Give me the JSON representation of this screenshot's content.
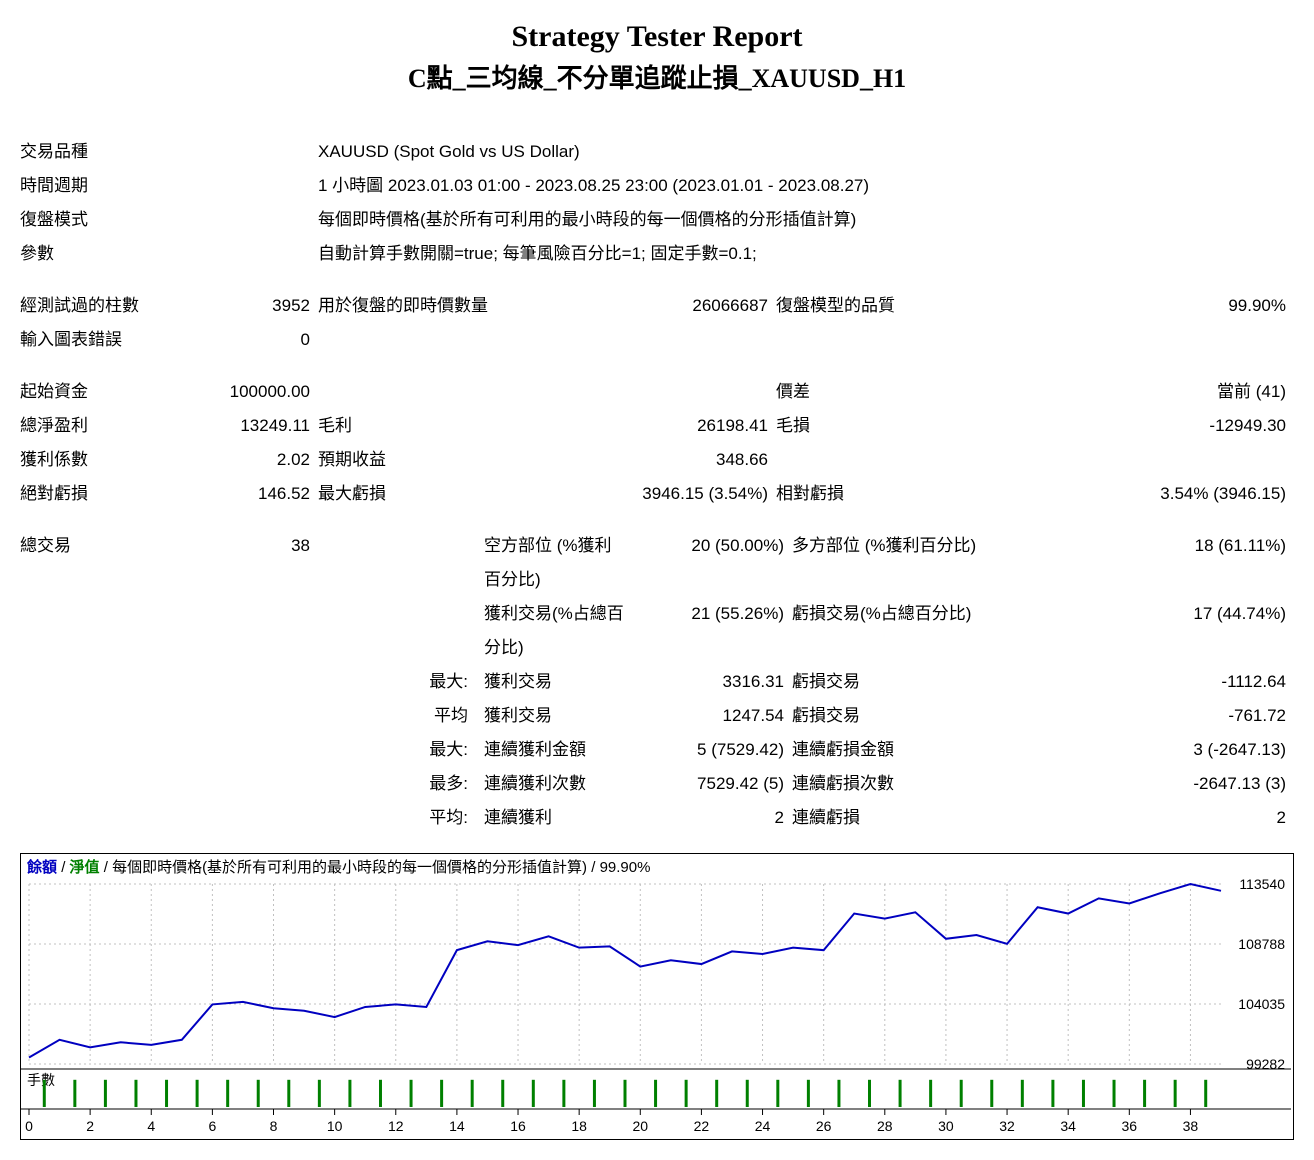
{
  "title": {
    "main": "Strategy Tester Report",
    "sub": "C點_三均線_不分單追蹤止損_XAUUSD_H1"
  },
  "info_rows": [
    {
      "label": "交易品種",
      "value": "XAUUSD (Spot Gold vs US Dollar)"
    },
    {
      "label": "時間週期",
      "value": "1 小時圖 2023.01.03 01:00 - 2023.08.25 23:00 (2023.01.01 - 2023.08.27)"
    },
    {
      "label": "復盤模式",
      "value": "每個即時價格(基於所有可利用的最小時段的每一個價格的分形插值計算)"
    },
    {
      "label": "參數",
      "value": "自動計算手數開關=true; 每筆風險百分比=1; 固定手數=0.1;"
    }
  ],
  "block2": [
    {
      "l1": "經測試過的柱數",
      "v1": "3952",
      "l2": "用於復盤的即時價數量",
      "v2": "26066687",
      "l3": "復盤模型的品質",
      "v3": "99.90%"
    },
    {
      "l1": "輸入圖表錯誤",
      "v1": "0",
      "l2": "",
      "v2": "",
      "l3": "",
      "v3": ""
    }
  ],
  "block3": [
    {
      "l1": "起始資金",
      "v1": "100000.00",
      "l2": "",
      "v2": "",
      "l3": "價差",
      "v3": "當前 (41)"
    },
    {
      "l1": "總淨盈利",
      "v1": "13249.11",
      "l2": "毛利",
      "v2": "26198.41",
      "l3": "毛損",
      "v3": "-12949.30"
    },
    {
      "l1": "獲利係數",
      "v1": "2.02",
      "l2": "預期收益",
      "v2": "348.66",
      "l3": "",
      "v3": ""
    },
    {
      "l1": "絕對虧損",
      "v1": "146.52",
      "l2": "最大虧損",
      "v2": "3946.15 (3.54%)",
      "l3": "相對虧損",
      "v3": "3.54% (3946.15)"
    }
  ],
  "block4": [
    {
      "l1": "總交易",
      "v1": "38",
      "pre2": "",
      "l2": "空方部位 (%獲利百分比)",
      "v2": "20 (50.00%)",
      "l3": "多方部位 (%獲利百分比)",
      "v3": "18 (61.11%)"
    },
    {
      "l1": "",
      "v1": "",
      "pre2": "",
      "l2": "獲利交易(%占總百分比)",
      "v2": "21 (55.26%)",
      "l3": "虧損交易(%占總百分比)",
      "v3": "17 (44.74%)"
    },
    {
      "l1": "",
      "v1": "",
      "pre2": "最大:",
      "l2": "獲利交易",
      "v2": "3316.31",
      "l3": "虧損交易",
      "v3": "-1112.64"
    },
    {
      "l1": "",
      "v1": "",
      "pre2": "平均",
      "l2": "獲利交易",
      "v2": "1247.54",
      "l3": "虧損交易",
      "v3": "-761.72"
    },
    {
      "l1": "",
      "v1": "",
      "pre2": "最大:",
      "l2": "連續獲利金額",
      "v2": "5 (7529.42)",
      "l3": "連續虧損金額",
      "v3": "3 (-2647.13)"
    },
    {
      "l1": "",
      "v1": "",
      "pre2": "最多:",
      "l2": "連續獲利次數",
      "v2": "7529.42 (5)",
      "l3": "連續虧損次數",
      "v3": "-2647.13 (3)"
    },
    {
      "l1": "",
      "v1": "",
      "pre2": "平均:",
      "l2": "連續獲利",
      "v2": "2",
      "l3": "連續虧損",
      "v3": "2"
    }
  ],
  "chart": {
    "header_parts": {
      "balance": "餘額",
      "equity": "淨值",
      "desc": "每個即時價格(基於所有可利用的最小時段的每一個價格的分形插值計算)",
      "quality": "99.90%"
    },
    "type": "line",
    "x_range": [
      0,
      39
    ],
    "x_ticks": [
      0,
      2,
      4,
      6,
      8,
      10,
      12,
      14,
      16,
      18,
      20,
      22,
      24,
      26,
      28,
      30,
      32,
      34,
      36,
      38
    ],
    "y_ticks": [
      99282,
      104035,
      108788,
      113540
    ],
    "line_color": "#0000c0",
    "line_width": 2,
    "grid_color": "#c0c0c0",
    "border_color": "#000000",
    "background_color": "#ffffff",
    "tick_font_size": 14,
    "equity_values": [
      99800,
      101200,
      100600,
      101000,
      100800,
      101200,
      104000,
      104200,
      103700,
      103500,
      103000,
      103800,
      104000,
      103800,
      108300,
      109000,
      108700,
      109400,
      108500,
      108600,
      107000,
      107500,
      107200,
      108200,
      108000,
      108500,
      108300,
      111200,
      110800,
      111300,
      109200,
      109500,
      108800,
      111700,
      111200,
      112400,
      112000,
      112800,
      113540,
      113000
    ],
    "lots_label": "手數",
    "lots_values": [
      1,
      1,
      1,
      1,
      1,
      1,
      1,
      1,
      1,
      1,
      1,
      1,
      1,
      1,
      1,
      1,
      1,
      1,
      1,
      1,
      1,
      1,
      1,
      1,
      1,
      1,
      1,
      1,
      1,
      1,
      1,
      1,
      1,
      1,
      1,
      1,
      1,
      1,
      1
    ],
    "lots_color": "#008000"
  }
}
